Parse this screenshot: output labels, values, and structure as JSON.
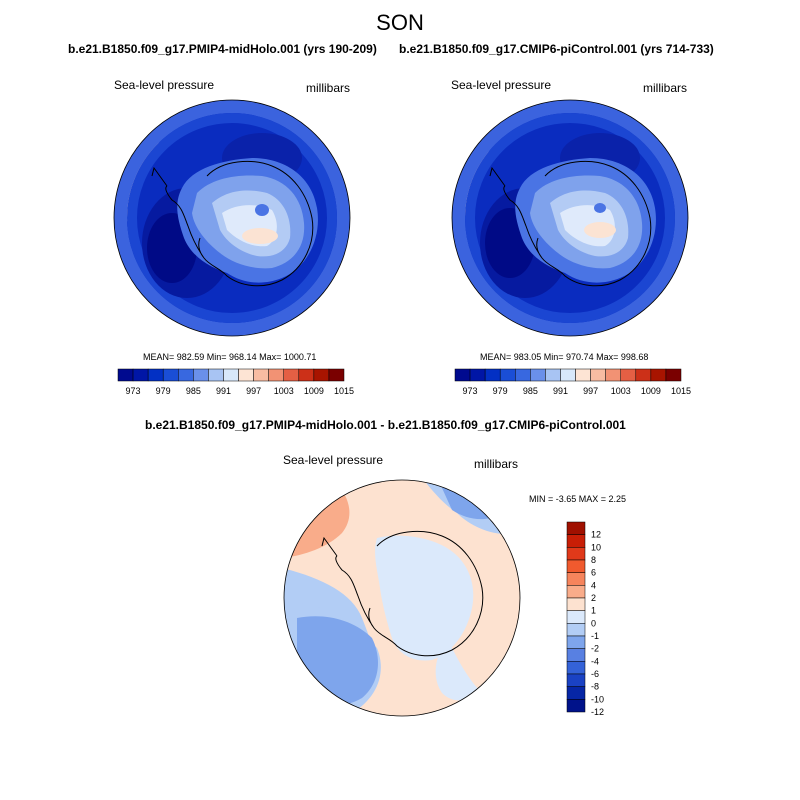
{
  "title": "SON",
  "panels": [
    {
      "case": "b.e21.B1850.f09_g17.PMIP4-midHolo.001 (yrs 190-209)",
      "variable": "Sea-level pressure",
      "units": "millibars",
      "stats": "MEAN= 982.59  Min= 968.14  Max= 1000.71"
    },
    {
      "case": "b.e21.B1850.f09_g17.CMIP6-piControl.001 (yrs 714-733)",
      "variable": "Sea-level pressure",
      "units": "millibars",
      "stats": "MEAN= 983.05  Min= 970.74  Max= 998.68"
    }
  ],
  "diff_panel": {
    "title": "b.e21.B1850.f09_g17.PMIP4-midHolo.001 - b.e21.B1850.f09_g17.CMIP6-piControl.001",
    "variable": "Sea-level pressure",
    "units": "millibars",
    "stats": "MIN =  -3.65 MAX =   2.25"
  },
  "chart_data": {
    "type": "heatmap",
    "abs_colorbar": {
      "labels": [
        "973",
        "979",
        "985",
        "991",
        "997",
        "1003",
        "1009",
        "1015"
      ],
      "colors": [
        "#000a8f",
        "#0016a6",
        "#0230c4",
        "#1a4ed6",
        "#3868e0",
        "#6a90ea",
        "#a8c4f3",
        "#d8e8fa",
        "#fde4d4",
        "#f8bca2",
        "#f29274",
        "#e45f44",
        "#cc3018",
        "#a81400",
        "#7a0000"
      ]
    },
    "diff_colorbar": {
      "labels": [
        "12",
        "10",
        "8",
        "6",
        "4",
        "2",
        "1",
        "0",
        "-1",
        "-2",
        "-4",
        "-6",
        "-8",
        "-10",
        "-12"
      ],
      "colors": [
        "#a01000",
        "#c81e06",
        "#e0391a",
        "#f05a2e",
        "#f6845c",
        "#f9ac8a",
        "#fde2d0",
        "#dbe9fb",
        "#b2cdf5",
        "#7ea5ec",
        "#5880e2",
        "#3462d8",
        "#1a42c4",
        "#0626a6",
        "#00128a"
      ]
    }
  }
}
